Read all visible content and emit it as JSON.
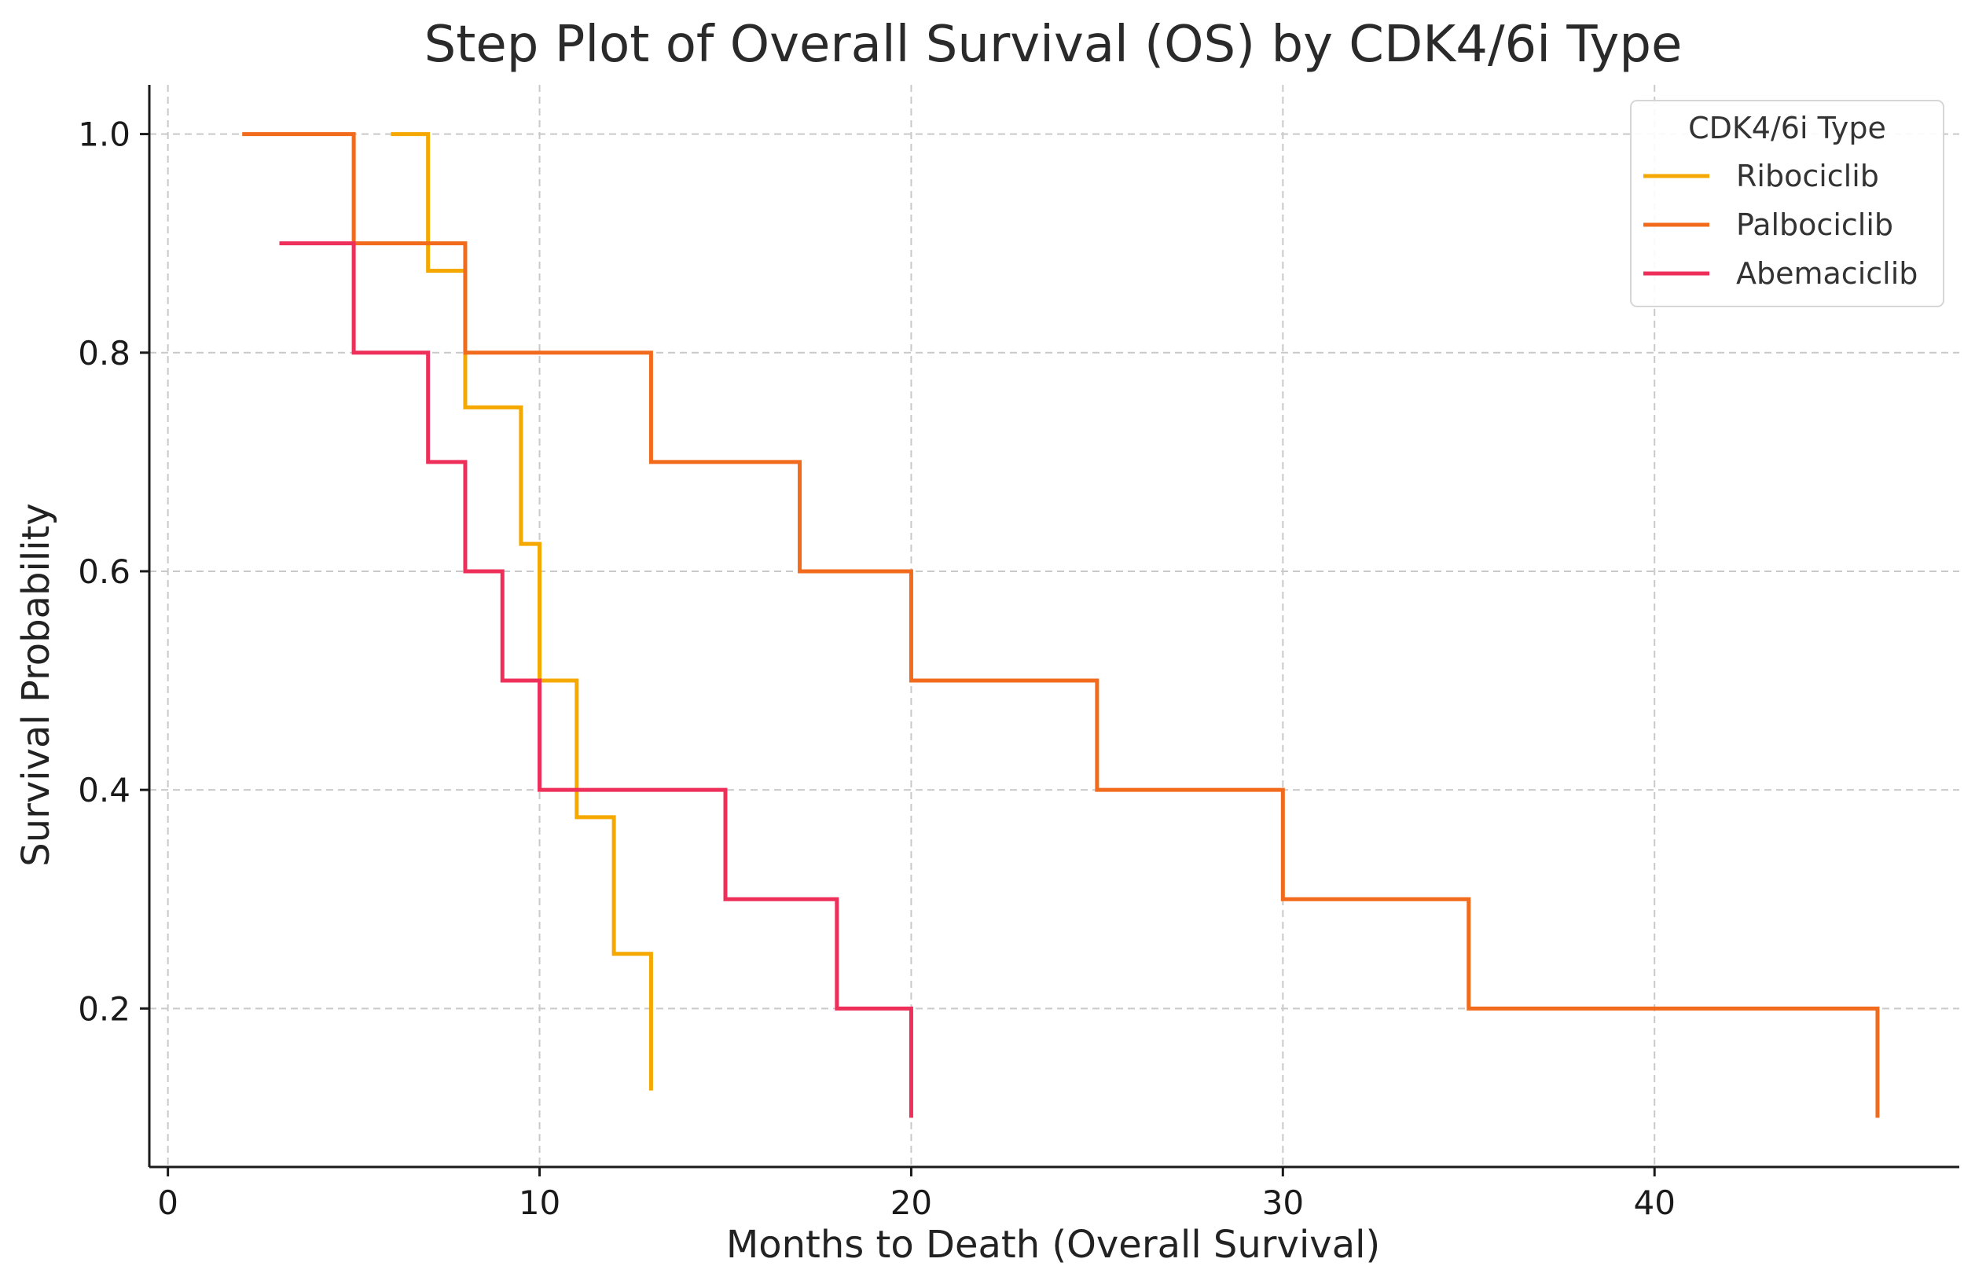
{
  "chart_data": {
    "type": "line",
    "step": "post",
    "title": "Step Plot of Overall Survival (OS) by CDK4/6i Type",
    "xlabel": "Months to Death (Overall Survival)",
    "ylabel": "Survival Probability",
    "xlim": [
      -0.5,
      48.2
    ],
    "ylim": [
      0.055,
      1.045
    ],
    "xticks": [
      0,
      10,
      20,
      30,
      40
    ],
    "xtick_labels": [
      "0",
      "10",
      "20",
      "30",
      "40"
    ],
    "yticks": [
      0.2,
      0.4,
      0.6,
      0.8,
      1.0
    ],
    "ytick_labels": [
      "0.2",
      "0.4",
      "0.6",
      "0.8",
      "1.0"
    ],
    "grid": true,
    "legend": {
      "title": "CDK4/6i Type",
      "position": "top-right"
    },
    "series": [
      {
        "name": "Ribociclib",
        "color": "#f5a800",
        "x": [
          6,
          7,
          8,
          9.5,
          10,
          11,
          12,
          13
        ],
        "y": [
          1.0,
          0.875,
          0.75,
          0.625,
          0.5,
          0.375,
          0.25,
          0.125
        ]
      },
      {
        "name": "Palbociclib",
        "color": "#f26a1b",
        "x": [
          2,
          5,
          8,
          13,
          17,
          20,
          25,
          30,
          35,
          46
        ],
        "y": [
          1.0,
          0.9,
          0.8,
          0.7,
          0.6,
          0.5,
          0.4,
          0.3,
          0.2,
          0.1
        ]
      },
      {
        "name": "Abemaciclib",
        "color": "#ee2f5a",
        "x": [
          3,
          5,
          7,
          8,
          9,
          10,
          15,
          18,
          20
        ],
        "y": [
          0.9,
          0.8,
          0.7,
          0.6,
          0.5,
          0.4,
          0.3,
          0.2,
          0.1
        ]
      }
    ]
  }
}
